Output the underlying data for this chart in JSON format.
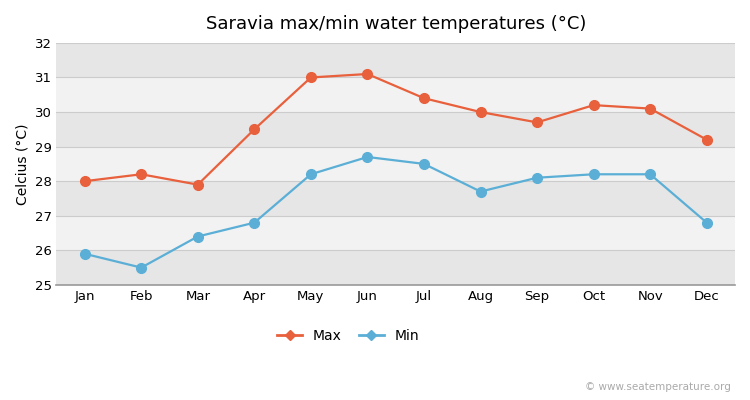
{
  "title": "Saravia max/min water temperatures (°C)",
  "ylabel": "Celcius (°C)",
  "months": [
    "Jan",
    "Feb",
    "Mar",
    "Apr",
    "May",
    "Jun",
    "Jul",
    "Aug",
    "Sep",
    "Oct",
    "Nov",
    "Dec"
  ],
  "max_temps": [
    28.0,
    28.2,
    27.9,
    29.5,
    31.0,
    31.1,
    30.4,
    30.0,
    29.7,
    30.2,
    30.1,
    29.2
  ],
  "min_temps": [
    25.9,
    25.5,
    26.4,
    26.8,
    28.2,
    28.7,
    28.5,
    27.7,
    28.1,
    28.2,
    28.2,
    26.8
  ],
  "max_color": "#e8603c",
  "min_color": "#5bafd6",
  "fig_bg_color": "#ffffff",
  "band_light": "#f2f2f2",
  "band_dark": "#e6e6e6",
  "grid_color": "#cccccc",
  "ylim": [
    25,
    32
  ],
  "yticks": [
    25,
    26,
    27,
    28,
    29,
    30,
    31,
    32
  ],
  "watermark": "© www.seatemperature.org",
  "title_fontsize": 13,
  "label_fontsize": 10,
  "tick_fontsize": 9.5,
  "watermark_fontsize": 7.5
}
